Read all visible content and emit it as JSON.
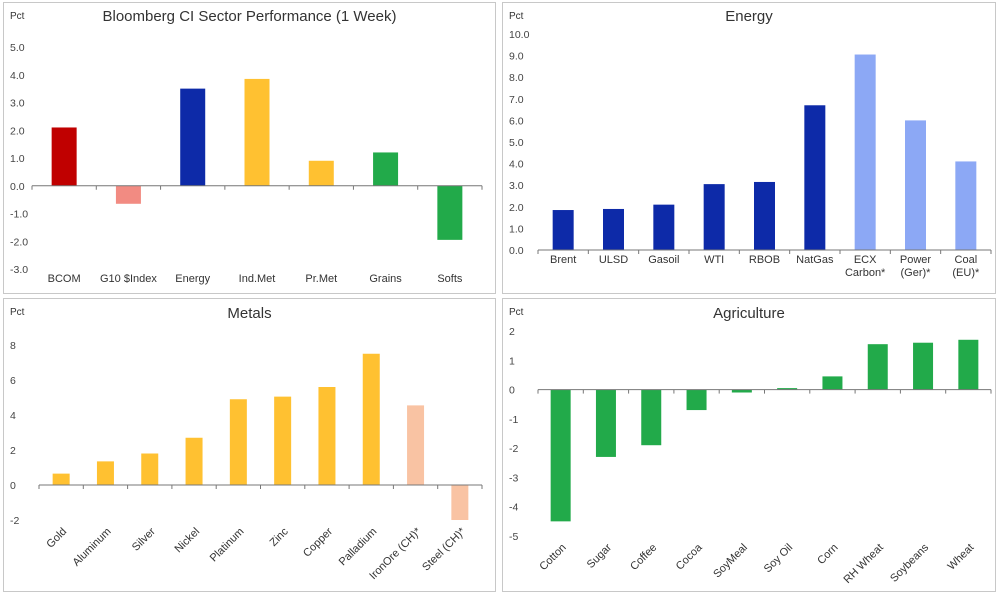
{
  "chart_data": [
    {
      "type": "bar",
      "title": "Bloomberg CI Sector Performance (1 Week)",
      "unit": "Pct",
      "ylim": [
        -3.0,
        5.0
      ],
      "yticks": [
        "5.0",
        "4.0",
        "3.0",
        "2.0",
        "1.0",
        "0.0",
        "-1.0",
        "-2.0",
        "-3.0"
      ],
      "categories": [
        "BCOM",
        "G10 $Index",
        "Energy",
        "Ind.Met",
        "Pr.Met",
        "Grains",
        "Softs"
      ],
      "values": [
        2.1,
        -0.65,
        3.5,
        3.85,
        0.9,
        1.2,
        -1.95
      ],
      "colors": [
        "#c00000",
        "#f28b82",
        "#0d2aa8",
        "#ffc131",
        "#ffc131",
        "#22aa4a",
        "#22aa4a"
      ],
      "grid": false
    },
    {
      "type": "bar",
      "title": "Energy",
      "unit": "Pct",
      "ylim": [
        0.0,
        10.0
      ],
      "yticks": [
        "10.0",
        "9.0",
        "8.0",
        "7.0",
        "6.0",
        "5.0",
        "4.0",
        "3.0",
        "2.0",
        "1.0",
        "0.0"
      ],
      "categories": [
        [
          "Brent"
        ],
        [
          "ULSD"
        ],
        [
          "Gasoil"
        ],
        [
          "WTI"
        ],
        [
          "RBOB"
        ],
        [
          "NatGas"
        ],
        [
          "ECX",
          "Carbon*"
        ],
        [
          "Power",
          "(Ger)*"
        ],
        [
          "Coal",
          "(EU)*"
        ]
      ],
      "values": [
        1.85,
        1.9,
        2.1,
        3.05,
        3.15,
        6.7,
        9.05,
        6.0,
        4.1
      ],
      "colors": [
        "#0d2aa8",
        "#0d2aa8",
        "#0d2aa8",
        "#0d2aa8",
        "#0d2aa8",
        "#0d2aa8",
        "#8ca8f5",
        "#8ca8f5",
        "#8ca8f5"
      ],
      "grid": false
    },
    {
      "type": "bar",
      "title": "Metals",
      "unit": "Pct",
      "ylim": [
        -2,
        8
      ],
      "yticks": [
        "8",
        "6",
        "4",
        "2",
        "0",
        "-2"
      ],
      "categories": [
        "Gold",
        "Aluminum",
        "Silver",
        "Nickel",
        "Platinum",
        "Zinc",
        "Copper",
        "Palladium",
        "IronOre (CH)*",
        "Steel (CH)*"
      ],
      "values": [
        0.65,
        1.35,
        1.8,
        2.7,
        4.9,
        5.05,
        5.6,
        7.5,
        4.55,
        -2.0
      ],
      "colors": [
        "#ffc131",
        "#ffc131",
        "#ffc131",
        "#ffc131",
        "#ffc131",
        "#ffc131",
        "#ffc131",
        "#ffc131",
        "#f9c3a3",
        "#f9c3a3"
      ],
      "grid": false
    },
    {
      "type": "bar",
      "title": "Agriculture",
      "unit": "Pct",
      "ylim": [
        -5,
        2
      ],
      "yticks": [
        "2",
        "1",
        "0",
        "-1",
        "-2",
        "-3",
        "-4",
        "-5"
      ],
      "categories": [
        "Cotton",
        "Sugar",
        "Coffee",
        "Cocoa",
        "SoyMeal",
        "Soy Oil",
        "Corn",
        "RH Wheat",
        "Soybeans",
        "Wheat"
      ],
      "values": [
        -4.5,
        -2.3,
        -1.9,
        -0.7,
        -0.1,
        0.05,
        0.45,
        1.55,
        1.6,
        1.7
      ],
      "colors": [
        "#22aa4a",
        "#22aa4a",
        "#22aa4a",
        "#22aa4a",
        "#22aa4a",
        "#22aa4a",
        "#22aa4a",
        "#22aa4a",
        "#22aa4a",
        "#22aa4a"
      ],
      "grid": false
    }
  ]
}
